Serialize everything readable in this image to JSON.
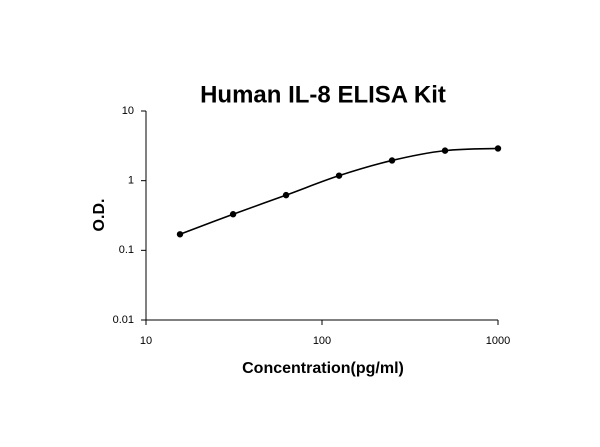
{
  "chart_data": {
    "type": "scatter",
    "title": "Human IL-8 ELISA Kit",
    "x_label": "Concentration(pg/ml)",
    "y_label": "O.D.",
    "x": [
      15.6,
      31.25,
      62.5,
      125,
      250,
      500,
      1000
    ],
    "series": [
      {
        "color": "#000000",
        "values": [
          0.17,
          0.33,
          0.62,
          1.18,
          1.95,
          2.7,
          2.9
        ]
      }
    ],
    "log_x": true,
    "log_y": true,
    "line": true,
    "xlim": [
      10,
      1000
    ],
    "xticks": [
      10,
      100,
      1000
    ],
    "ylim": [
      0.01,
      10
    ],
    "yticks": [
      0.01,
      0.1,
      1,
      10
    ]
  }
}
